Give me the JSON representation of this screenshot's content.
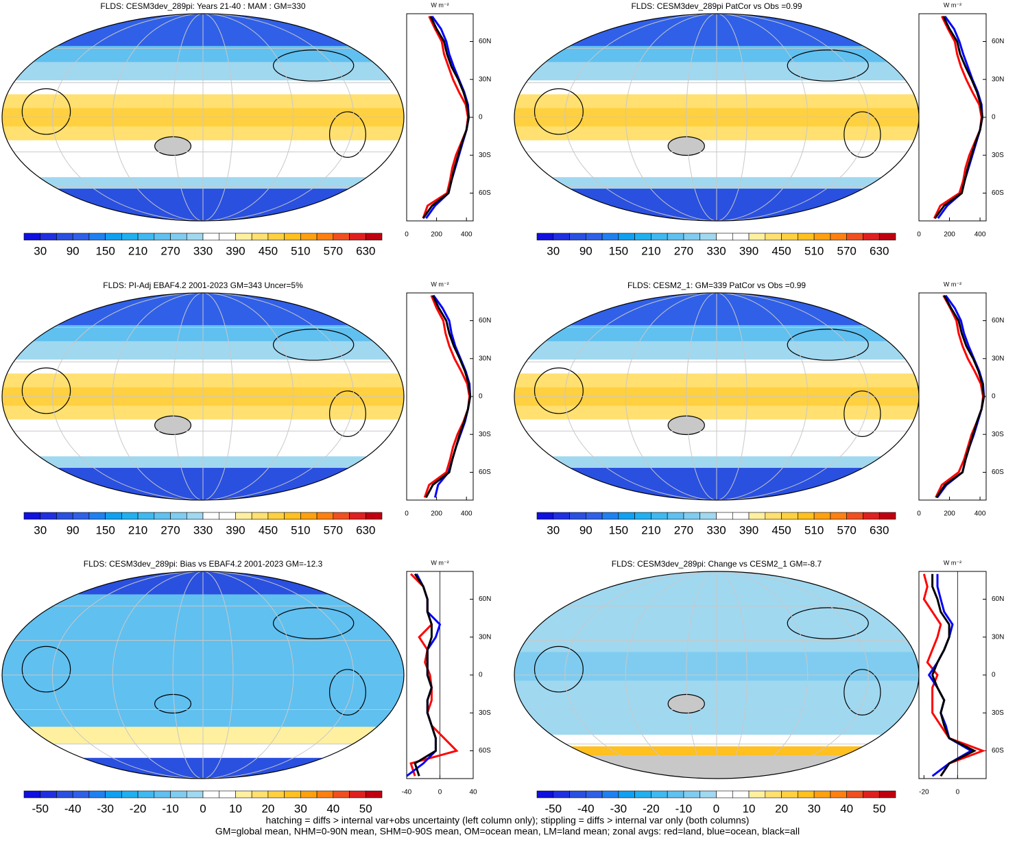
{
  "chart_data": [
    {
      "type": "map",
      "title": "FLDS: CESM3dev_289pi: Years 21-40 : MAM : GM=330",
      "style": "abs",
      "colorbar": {
        "lim": [
          0,
          660
        ],
        "ticks": [
          30,
          90,
          150,
          210,
          270,
          330,
          390,
          450,
          510,
          570,
          630
        ],
        "colors": [
          "#1010e0",
          "#2030e0",
          "#2a50e0",
          "#3060e8",
          "#2080f0",
          "#10a0f0",
          "#20b0f0",
          "#40b8f0",
          "#60c0f0",
          "#80ccf0",
          "#a0d8f0",
          "#ffffff",
          "#ffffff",
          "#fff0a0",
          "#ffe070",
          "#ffd040",
          "#ffc020",
          "#ffa010",
          "#ff8010",
          "#f05020",
          "#e02020",
          "#c00010"
        ]
      },
      "zonal": {
        "type": "line",
        "unit": "W m⁻²",
        "ylim": [
          -82,
          82
        ],
        "xlim": [
          0,
          445
        ],
        "xticks": [
          0,
          200,
          400
        ],
        "yticks": [
          {
            "value": 60,
            "label": "60N"
          },
          {
            "value": 30,
            "label": "30N"
          },
          0,
          {
            "value": -30,
            "label": "30S"
          },
          {
            "value": -60,
            "label": "60S"
          }
        ],
        "y": [
          -80,
          -70,
          -60,
          -50,
          -40,
          -30,
          -20,
          -10,
          0,
          10,
          20,
          30,
          40,
          50,
          60,
          70,
          80
        ],
        "series": [
          {
            "color": "#ff0000",
            "values": [
              110,
              140,
              270,
              290,
              305,
              330,
              365,
              400,
              410,
              395,
              350,
              310,
              280,
              250,
              235,
              190,
              150
            ]
          },
          {
            "color": "#0000ff",
            "values": [
              130,
              190,
              280,
              300,
              325,
              350,
              375,
              400,
              415,
              410,
              385,
              350,
              315,
              285,
              265,
              230,
              170
            ]
          },
          {
            "color": "#000000",
            "values": [
              110,
              170,
              280,
              300,
              320,
              345,
              370,
              400,
              415,
              405,
              380,
              345,
              300,
              270,
              250,
              200,
              160
            ]
          }
        ]
      }
    },
    {
      "type": "map",
      "title": "FLDS: CESM3dev_289pi PatCor vs Obs =0.99",
      "style": "abs",
      "colorbar": {
        "lim": [
          0,
          660
        ],
        "ticks": [
          30,
          90,
          150,
          210,
          270,
          330,
          390,
          450,
          510,
          570,
          630
        ],
        "colors": [
          "#1010e0",
          "#2030e0",
          "#2a50e0",
          "#3060e8",
          "#2080f0",
          "#10a0f0",
          "#20b0f0",
          "#40b8f0",
          "#60c0f0",
          "#80ccf0",
          "#a0d8f0",
          "#ffffff",
          "#ffffff",
          "#fff0a0",
          "#ffe070",
          "#ffd040",
          "#ffc020",
          "#ffa010",
          "#ff8010",
          "#f05020",
          "#e02020",
          "#c00010"
        ]
      },
      "zonal": {
        "type": "line",
        "unit": "W m⁻²",
        "ylim": [
          -82,
          82
        ],
        "xlim": [
          0,
          440
        ],
        "xticks": [
          0,
          200,
          400
        ],
        "yticks": [
          {
            "value": 60,
            "label": "60N"
          },
          {
            "value": 30,
            "label": "30N"
          },
          0,
          {
            "value": -30,
            "label": "30S"
          },
          {
            "value": -60,
            "label": "60S"
          }
        ],
        "y": [
          -80,
          -70,
          -60,
          -50,
          -40,
          -30,
          -20,
          -10,
          0,
          10,
          20,
          30,
          40,
          50,
          60,
          70,
          80
        ],
        "series": [
          {
            "color": "#ff0000",
            "values": [
              100,
              140,
              265,
              290,
              305,
              330,
              365,
              400,
              410,
              395,
              350,
              310,
              275,
              250,
              235,
              190,
              150
            ]
          },
          {
            "color": "#0000ff",
            "values": [
              125,
              185,
              280,
              300,
              325,
              350,
              375,
              400,
              415,
              410,
              385,
              350,
              320,
              290,
              265,
              230,
              170
            ]
          },
          {
            "color": "#000000",
            "values": [
              105,
              165,
              280,
              300,
              320,
              345,
              370,
              400,
              415,
              405,
              380,
              345,
              305,
              270,
              250,
              200,
              160
            ]
          }
        ]
      }
    },
    {
      "type": "map",
      "title": "FLDS: PI-Adj EBAF4.2 2001-2023 GM=343 Uncer=5%",
      "style": "abs",
      "colorbar": {
        "lim": [
          0,
          660
        ],
        "ticks": [
          30,
          90,
          150,
          210,
          270,
          330,
          390,
          450,
          510,
          570,
          630
        ],
        "colors": [
          "#1010e0",
          "#2030e0",
          "#2a50e0",
          "#3060e8",
          "#2080f0",
          "#10a0f0",
          "#20b0f0",
          "#40b8f0",
          "#60c0f0",
          "#80ccf0",
          "#a0d8f0",
          "#ffffff",
          "#ffffff",
          "#fff0a0",
          "#ffe070",
          "#ffd040",
          "#ffc020",
          "#ffa010",
          "#ff8010",
          "#f05020",
          "#e02020",
          "#c00010"
        ]
      },
      "zonal": {
        "type": "line",
        "unit": "W m⁻²",
        "ylim": [
          -82,
          82
        ],
        "xlim": [
          0,
          445
        ],
        "xticks": [
          0,
          200,
          400
        ],
        "yticks": [
          {
            "value": 60,
            "label": "60N"
          },
          {
            "value": 30,
            "label": "30N"
          },
          0,
          {
            "value": -30,
            "label": "30S"
          },
          {
            "value": -60,
            "label": "60S"
          }
        ],
        "y": [
          -80,
          -70,
          -60,
          -50,
          -40,
          -30,
          -20,
          -10,
          0,
          10,
          20,
          30,
          40,
          50,
          60,
          70,
          80
        ],
        "series": [
          {
            "color": "#ff0000",
            "values": [
              120,
              150,
              265,
              290,
              310,
              340,
              380,
              410,
              420,
              405,
              365,
              320,
              285,
              260,
              245,
              200,
              165
            ]
          },
          {
            "color": "#0000ff",
            "values": [
              190,
              210,
              280,
              305,
              330,
              360,
              390,
              410,
              425,
              420,
              395,
              360,
              325,
              300,
              285,
              240,
              180
            ]
          },
          {
            "color": "#000000",
            "values": [
              130,
              175,
              285,
              305,
              330,
              355,
              385,
              410,
              425,
              415,
              390,
              355,
              315,
              285,
              265,
              215,
              175
            ]
          }
        ]
      }
    },
    {
      "type": "map",
      "title": "FLDS: CESM2_1: GM=339 PatCor vs Obs =0.99",
      "style": "abs",
      "colorbar": {
        "lim": [
          0,
          660
        ],
        "ticks": [
          30,
          90,
          150,
          210,
          270,
          330,
          390,
          450,
          510,
          570,
          630
        ],
        "colors": [
          "#1010e0",
          "#2030e0",
          "#2a50e0",
          "#3060e8",
          "#2080f0",
          "#10a0f0",
          "#20b0f0",
          "#40b8f0",
          "#60c0f0",
          "#80ccf0",
          "#a0d8f0",
          "#ffffff",
          "#ffffff",
          "#fff0a0",
          "#ffe070",
          "#ffd040",
          "#ffc020",
          "#ffa010",
          "#ff8010",
          "#f05020",
          "#e02020",
          "#c00010"
        ]
      },
      "zonal": {
        "type": "line",
        "unit": "W m⁻²",
        "ylim": [
          -82,
          82
        ],
        "xlim": [
          0,
          440
        ],
        "xticks": [
          0,
          200,
          400
        ],
        "yticks": [
          {
            "value": 60,
            "label": "60N"
          },
          {
            "value": 30,
            "label": "30N"
          },
          0,
          {
            "value": -30,
            "label": "30S"
          },
          {
            "value": -60,
            "label": "60S"
          }
        ],
        "y": [
          -80,
          -70,
          -60,
          -50,
          -40,
          -30,
          -20,
          -10,
          0,
          10,
          20,
          30,
          40,
          50,
          60,
          70,
          80
        ],
        "series": [
          {
            "color": "#ff0000",
            "values": [
              110,
              150,
              260,
              295,
              320,
              345,
              380,
              410,
              420,
              405,
              365,
              320,
              285,
              260,
              245,
              205,
              160
            ]
          },
          {
            "color": "#0000ff",
            "values": [
              120,
              180,
              285,
              305,
              330,
              360,
              385,
              410,
              425,
              420,
              395,
              360,
              325,
              295,
              275,
              235,
              175
            ]
          },
          {
            "color": "#000000",
            "values": [
              115,
              170,
              285,
              305,
              330,
              355,
              380,
              410,
              425,
              415,
              390,
              355,
              310,
              280,
              260,
              210,
              165
            ]
          }
        ]
      }
    },
    {
      "type": "map",
      "title": "FLDS: CESM3dev_289pi: Bias vs EBAF4.2 2001-2023 GM=-12.3",
      "style": "bias",
      "colorbar": {
        "lim": [
          -55,
          55
        ],
        "ticks": [
          -50,
          -40,
          -30,
          -20,
          -10,
          0,
          10,
          20,
          30,
          40,
          50
        ],
        "colors": [
          "#1010e0",
          "#2030e0",
          "#2a50e0",
          "#3060e8",
          "#2080f0",
          "#10a0f0",
          "#20b0f0",
          "#40b8f0",
          "#60c0f0",
          "#80ccf0",
          "#a0d8f0",
          "#ffffff",
          "#ffffff",
          "#fff0a0",
          "#ffe070",
          "#ffd040",
          "#ffc020",
          "#ffa010",
          "#ff8010",
          "#f05020",
          "#e02020",
          "#c00010"
        ]
      },
      "zonal": {
        "type": "line",
        "unit": "W m⁻²",
        "ylim": [
          -82,
          82
        ],
        "xlim": [
          -40,
          40
        ],
        "xticks": [
          -40,
          0,
          40
        ],
        "yticks": [
          {
            "value": 60,
            "label": "60N"
          },
          {
            "value": 30,
            "label": "30N"
          },
          0,
          {
            "value": -30,
            "label": "30S"
          },
          {
            "value": -60,
            "label": "60S"
          }
        ],
        "y": [
          -80,
          -70,
          -60,
          -50,
          -40,
          -30,
          -20,
          -10,
          0,
          10,
          20,
          30,
          40,
          50,
          60,
          70,
          80
        ],
        "series": [
          {
            "color": "#ff0000",
            "values": [
              -30,
              -35,
              20,
              5,
              -10,
              -15,
              -10,
              -10,
              -12,
              -18,
              -15,
              -25,
              -10,
              -15,
              -15,
              -20,
              -35
            ]
          },
          {
            "color": "#0000ff",
            "values": [
              -40,
              -20,
              -5,
              -5,
              -10,
              -15,
              -15,
              -10,
              -15,
              -15,
              -15,
              -5,
              0,
              -15,
              -15,
              -20,
              -28
            ]
          },
          {
            "color": "#000000",
            "values": [
              -25,
              -30,
              -5,
              -5,
              -10,
              -15,
              -15,
              -10,
              -15,
              -15,
              -15,
              -10,
              -10,
              -15,
              -15,
              -20,
              -30
            ]
          }
        ]
      }
    },
    {
      "type": "map",
      "title": "FLDS: CESM3dev_289pi: Change vs CESM2_1 GM=-8.7",
      "style": "change",
      "colorbar": {
        "lim": [
          -55,
          55
        ],
        "ticks": [
          -50,
          -40,
          -30,
          -20,
          -10,
          0,
          10,
          20,
          30,
          40,
          50
        ],
        "colors": [
          "#1010e0",
          "#2030e0",
          "#2a50e0",
          "#3060e8",
          "#2080f0",
          "#10a0f0",
          "#20b0f0",
          "#40b8f0",
          "#60c0f0",
          "#80ccf0",
          "#a0d8f0",
          "#ffffff",
          "#ffffff",
          "#fff0a0",
          "#ffe070",
          "#ffd040",
          "#ffc020",
          "#ffa010",
          "#ff8010",
          "#f05020",
          "#e02020",
          "#c00010"
        ]
      },
      "zonal": {
        "type": "line",
        "unit": "W m⁻²",
        "ylim": [
          -82,
          82
        ],
        "xlim": [
          -23,
          17
        ],
        "xticks": [
          -20,
          0
        ],
        "yticks": [
          {
            "value": 60,
            "label": "60N"
          },
          {
            "value": 30,
            "label": "30N"
          },
          0,
          {
            "value": -30,
            "label": "30S"
          },
          {
            "value": -60,
            "label": "60S"
          }
        ],
        "y": [
          -80,
          -70,
          -60,
          -50,
          -40,
          -30,
          -20,
          -10,
          0,
          10,
          20,
          30,
          40,
          50,
          60,
          70,
          80
        ],
        "series": [
          {
            "color": "#ff0000",
            "values": [
              -10,
              -5,
              15,
              -5,
              -10,
              -15,
              -15,
              -15,
              -12,
              -18,
              -15,
              -12,
              -10,
              -15,
              -20,
              -18,
              -20
            ]
          },
          {
            "color": "#0000ff",
            "values": [
              -15,
              -5,
              8,
              -5,
              -7,
              -10,
              -8,
              -12,
              -17,
              -12,
              -8,
              -5,
              -3,
              -8,
              -10,
              -12,
              -12
            ]
          },
          {
            "color": "#000000",
            "values": [
              -10,
              -5,
              10,
              -5,
              -8,
              -10,
              -8,
              -12,
              -15,
              -12,
              -8,
              -5,
              -5,
              -10,
              -12,
              -15,
              -15
            ]
          }
        ]
      }
    }
  ],
  "footnotes": [
    "hatching = diffs > internal var+obs uncertainty (left column only); stippling = diffs > internal var only (both columns)",
    "GM=global mean, NHM=0-90N mean, SHM=0-90S mean, OM=ocean mean, LM=land mean; zonal avgs: red=land, blue=ocean, black=all"
  ]
}
